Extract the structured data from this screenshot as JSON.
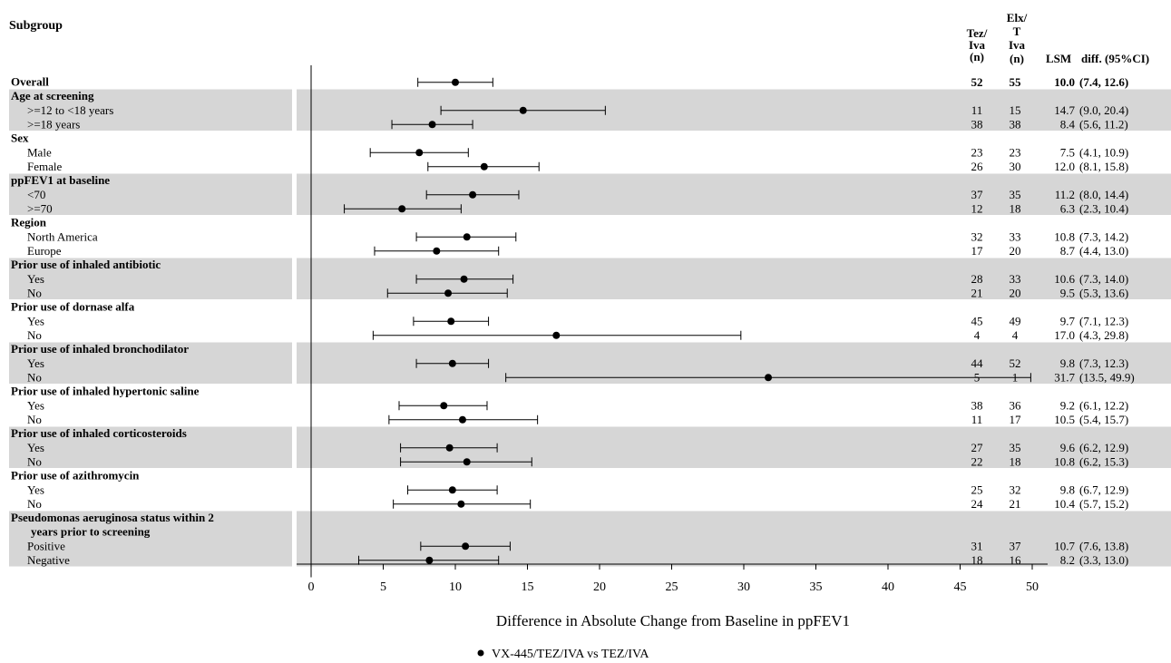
{
  "chart_data": {
    "type": "forest",
    "xlabel": "Difference in Absolute Change from Baseline in ppFEV1",
    "xlim": [
      0,
      50
    ],
    "xticks": [
      0,
      5,
      10,
      15,
      20,
      25,
      30,
      35,
      40,
      45,
      50
    ],
    "legend": {
      "label": "VX-445/TEZ/IVA vs TEZ/IVA",
      "placement": "bottom"
    },
    "headers": {
      "subgroup": "Subgroup",
      "tez_iva_n": [
        "Tez/",
        "Iva",
        "(n)"
      ],
      "elx_n": [
        "Elx/",
        "T",
        "Iva",
        "(n)"
      ],
      "lsm": "LSM",
      "diff": "diff. (95%CI)"
    },
    "groups": [
      {
        "label": "Overall",
        "rows": [
          {
            "label": "",
            "n1": "52",
            "n2": "55",
            "lsm": "10.0",
            "ci": "(7.4, 12.6)",
            "est": 10.0,
            "lo": 7.4,
            "hi": 12.6
          }
        ]
      },
      {
        "label": "Age at screening",
        "rows": [
          {
            "label": ">=12 to <18 years",
            "n1": "11",
            "n2": "15",
            "lsm": "14.7",
            "ci": "(9.0, 20.4)",
            "est": 14.7,
            "lo": 9.0,
            "hi": 20.4
          },
          {
            "label": ">=18 years",
            "n1": "38",
            "n2": "38",
            "lsm": "8.4",
            "ci": "(5.6, 11.2)",
            "est": 8.4,
            "lo": 5.6,
            "hi": 11.2
          }
        ]
      },
      {
        "label": "Sex",
        "rows": [
          {
            "label": "Male",
            "n1": "23",
            "n2": "23",
            "lsm": "7.5",
            "ci": "(4.1, 10.9)",
            "est": 7.5,
            "lo": 4.1,
            "hi": 10.9
          },
          {
            "label": "Female",
            "n1": "26",
            "n2": "30",
            "lsm": "12.0",
            "ci": "(8.1, 15.8)",
            "est": 12.0,
            "lo": 8.1,
            "hi": 15.8
          }
        ]
      },
      {
        "label": "ppFEV1 at baseline",
        "rows": [
          {
            "label": "<70",
            "n1": "37",
            "n2": "35",
            "lsm": "11.2",
            "ci": "(8.0, 14.4)",
            "est": 11.2,
            "lo": 8.0,
            "hi": 14.4
          },
          {
            "label": ">=70",
            "n1": "12",
            "n2": "18",
            "lsm": "6.3",
            "ci": "(2.3, 10.4)",
            "est": 6.3,
            "lo": 2.3,
            "hi": 10.4
          }
        ]
      },
      {
        "label": "Region",
        "rows": [
          {
            "label": "North America",
            "n1": "32",
            "n2": "33",
            "lsm": "10.8",
            "ci": "(7.3, 14.2)",
            "est": 10.8,
            "lo": 7.3,
            "hi": 14.2
          },
          {
            "label": "Europe",
            "n1": "17",
            "n2": "20",
            "lsm": "8.7",
            "ci": "(4.4, 13.0)",
            "est": 8.7,
            "lo": 4.4,
            "hi": 13.0
          }
        ]
      },
      {
        "label": "Prior use of inhaled antibiotic",
        "rows": [
          {
            "label": "Yes",
            "n1": "28",
            "n2": "33",
            "lsm": "10.6",
            "ci": "(7.3, 14.0)",
            "est": 10.6,
            "lo": 7.3,
            "hi": 14.0
          },
          {
            "label": "No",
            "n1": "21",
            "n2": "20",
            "lsm": "9.5",
            "ci": "(5.3, 13.6)",
            "est": 9.5,
            "lo": 5.3,
            "hi": 13.6
          }
        ]
      },
      {
        "label": "Prior use of dornase alfa",
        "rows": [
          {
            "label": "Yes",
            "n1": "45",
            "n2": "49",
            "lsm": "9.7",
            "ci": "(7.1, 12.3)",
            "est": 9.7,
            "lo": 7.1,
            "hi": 12.3
          },
          {
            "label": "No",
            "n1": "4",
            "n2": "4",
            "lsm": "17.0",
            "ci": "(4.3, 29.8)",
            "est": 17.0,
            "lo": 4.3,
            "hi": 29.8
          }
        ]
      },
      {
        "label": "Prior use of inhaled bronchodilator",
        "rows": [
          {
            "label": "Yes",
            "n1": "44",
            "n2": "52",
            "lsm": "9.8",
            "ci": "(7.3, 12.3)",
            "est": 9.8,
            "lo": 7.3,
            "hi": 12.3
          },
          {
            "label": "No",
            "n1": "5",
            "n2": "1",
            "lsm": "31.7",
            "ci": "(13.5, 49.9)",
            "est": 31.7,
            "lo": 13.5,
            "hi": 49.9
          }
        ]
      },
      {
        "label": "Prior use of inhaled hypertonic saline",
        "rows": [
          {
            "label": "Yes",
            "n1": "38",
            "n2": "36",
            "lsm": "9.2",
            "ci": "(6.1, 12.2)",
            "est": 9.2,
            "lo": 6.1,
            "hi": 12.2
          },
          {
            "label": "No",
            "n1": "11",
            "n2": "17",
            "lsm": "10.5",
            "ci": "(5.4, 15.7)",
            "est": 10.5,
            "lo": 5.4,
            "hi": 15.7
          }
        ]
      },
      {
        "label": "Prior use of inhaled corticosteroids",
        "rows": [
          {
            "label": "Yes",
            "n1": "27",
            "n2": "35",
            "lsm": "9.6",
            "ci": "(6.2, 12.9)",
            "est": 9.6,
            "lo": 6.2,
            "hi": 12.9
          },
          {
            "label": "No",
            "n1": "22",
            "n2": "18",
            "lsm": "10.8",
            "ci": "(6.2, 15.3)",
            "est": 10.8,
            "lo": 6.2,
            "hi": 15.3
          }
        ]
      },
      {
        "label": "Prior use of azithromycin",
        "rows": [
          {
            "label": "Yes",
            "n1": "25",
            "n2": "32",
            "lsm": "9.8",
            "ci": "(6.7, 12.9)",
            "est": 9.8,
            "lo": 6.7,
            "hi": 12.9
          },
          {
            "label": "No",
            "n1": "24",
            "n2": "21",
            "lsm": "10.4",
            "ci": "(5.7, 15.2)",
            "est": 10.4,
            "lo": 5.7,
            "hi": 15.2
          }
        ]
      },
      {
        "label": "Pseudomonas aeruginosa status within 2",
        "label2": "years prior to screening",
        "rows": [
          {
            "label": "Positive",
            "n1": "31",
            "n2": "37",
            "lsm": "10.7",
            "ci": "(7.6, 13.8)",
            "est": 10.7,
            "lo": 7.6,
            "hi": 13.8
          },
          {
            "label": "Negative",
            "n1": "18",
            "n2": "16",
            "lsm": "8.2",
            "ci": "(3.3, 13.0)",
            "est": 8.2,
            "lo": 3.3,
            "hi": 13.0
          }
        ]
      }
    ]
  }
}
